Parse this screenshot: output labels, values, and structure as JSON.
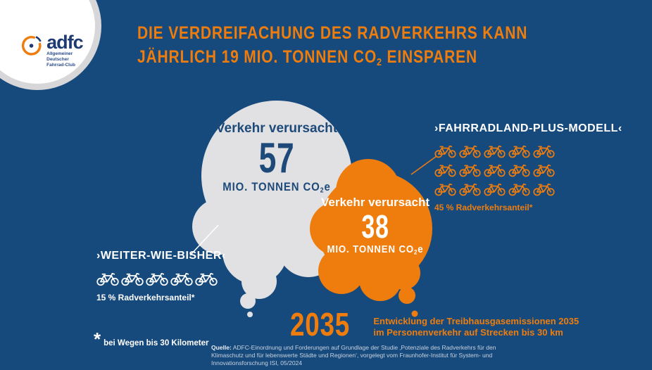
{
  "colors": {
    "background": "#174a7c",
    "orange": "#ee7d0e",
    "cloud_gray": "#e1e1e4",
    "brand_blue": "#1e4a7a",
    "white": "#ffffff"
  },
  "logo": {
    "brand": "adfc",
    "subtitle_line1": "Allgemeiner Deutscher",
    "subtitle_line2": "Fahrrad-Club"
  },
  "title": {
    "line1": "DIE VERDREIFACHUNG DES RADVERKEHRS KANN",
    "line2_prefix": "JÄHRLICH 19 MIO. TONNEN CO",
    "line2_sub": "2",
    "line2_suffix": " EINSPAREN"
  },
  "gray_cloud": {
    "label": "Verkehr verursacht",
    "value": "57",
    "unit_prefix": "MIO. TONNEN CO",
    "unit_sub": "2",
    "unit_suffix": "e"
  },
  "orange_cloud": {
    "label": "Verkehr verursacht",
    "value": "38",
    "unit_prefix": "MIO. TONNEN CO",
    "unit_sub": "2",
    "unit_suffix": "e"
  },
  "scenario_left": {
    "heading": "›WEITER-WIE-BISHER‹",
    "bike_count": 5,
    "share_label": "15 % Radverkehrsanteil*"
  },
  "scenario_right": {
    "heading": "›FAHRRADLAND-PLUS-MODELL‹",
    "bike_count": 15,
    "bikes_per_row": 5,
    "share_label": "45 % Radverkehrsanteil*"
  },
  "year_callout": {
    "year": "2035",
    "description_line1": "Entwicklung der Treibhausgasemissionen 2035",
    "description_line2": "im Personenverkehr auf Strecken bis 30 km"
  },
  "footnote": {
    "symbol": "*",
    "text": "bei Wegen bis 30 Kilometer"
  },
  "source": {
    "label": "Quelle:",
    "text": " ADFC-Einordnung und Forderungen auf Grundlage der Studie ‚Potenziale des Radverkehrs für den Klimaschutz und für lebenswerte Städte und Regionen‘, vorgelegt vom Fraunhofer-Institut für System- und Innovationsforschung ISI, 05/2024"
  }
}
